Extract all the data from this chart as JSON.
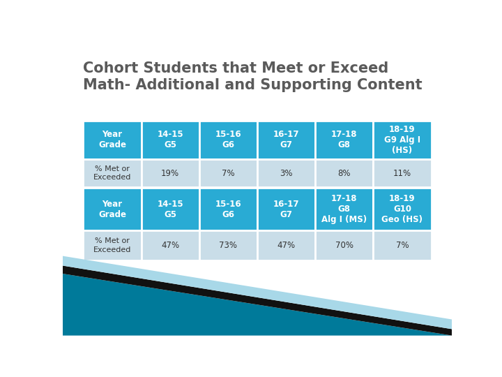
{
  "title_line1": "Cohort Students that Meet or Exceed",
  "title_line2": "Math- Additional and Supporting Content",
  "title_color": "#5a5a5a",
  "title_fontsize": 15,
  "header_bg": "#29ABD4",
  "header_text_color": "#FFFFFF",
  "row_bg": "#C9DDE8",
  "row_text_color": "#333333",
  "table1_headers": [
    "Year\nGrade",
    "14-15\nG5",
    "15-16\nG6",
    "16-17\nG7",
    "17-18\nG8",
    "18-19\nG9 Alg I\n(HS)"
  ],
  "table1_row_label": "% Met or\nExceeded",
  "table1_row_values": [
    "19%",
    "7%",
    "3%",
    "8%",
    "11%"
  ],
  "table2_headers": [
    "Year\nGrade",
    "14-15\nG5",
    "15-16\nG6",
    "16-17\nG7",
    "17-18\nG8\nAlg I (MS)",
    "18-19\nG10\nGeo (HS)"
  ],
  "table2_row_label": "% Met or\nExceeded",
  "table2_row_values": [
    "47%",
    "73%",
    "47%",
    "70%",
    "7%"
  ],
  "bg_color": "#FFFFFF",
  "deco_teal_dark": "#007A9A",
  "deco_black": "#111111",
  "deco_teal_light": "#A8D8E8"
}
